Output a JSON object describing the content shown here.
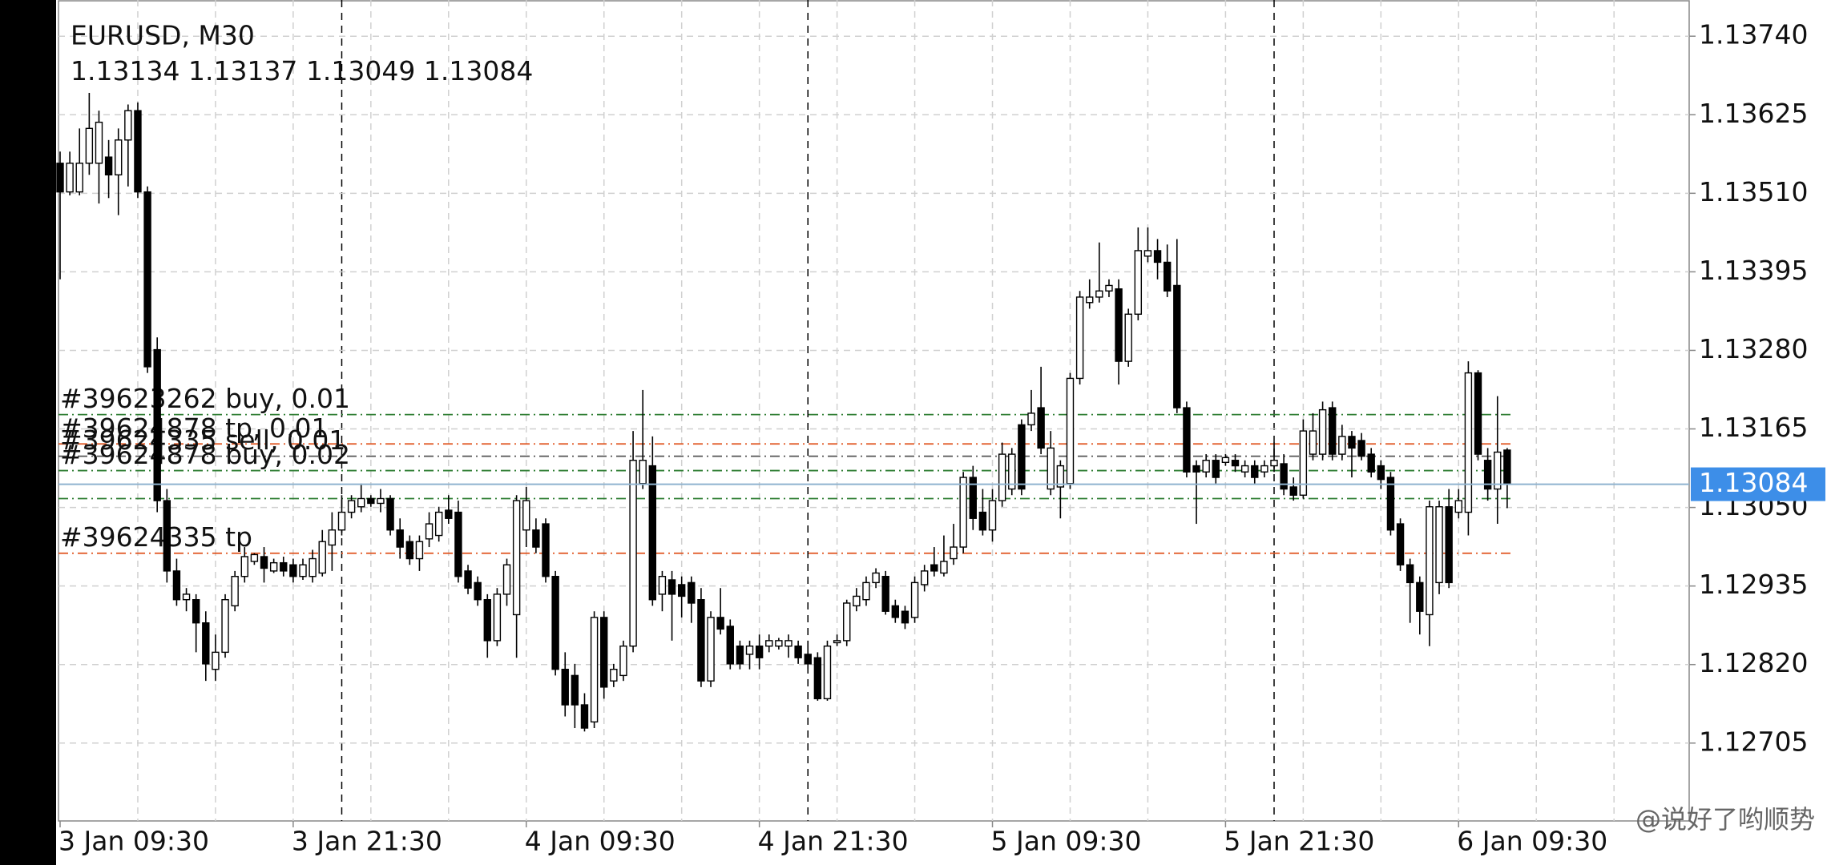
{
  "chart_data": {
    "type": "candlestick",
    "title": "EURUSD, M30",
    "categories": [
      "3 Jan 09:30",
      null,
      null,
      null,
      null,
      null,
      null,
      null,
      null,
      null,
      null,
      null,
      null,
      null,
      null,
      null,
      null,
      null,
      null,
      null,
      null,
      null,
      null,
      null,
      "3 Jan 21:30",
      null,
      null,
      null,
      null,
      null,
      null,
      null,
      null,
      null,
      null,
      null,
      null,
      null,
      null,
      null,
      null,
      null,
      null,
      null,
      null,
      null,
      null,
      null,
      "4 Jan 09:30",
      null,
      null,
      null,
      null,
      null,
      null,
      null,
      null,
      null,
      null,
      null,
      null,
      null,
      null,
      null,
      null,
      null,
      null,
      null,
      null,
      null,
      null,
      null,
      "4 Jan 21:30",
      null,
      null,
      null,
      null,
      null,
      null,
      null,
      null,
      null,
      null,
      null,
      null,
      null,
      null,
      null,
      null,
      null,
      null,
      null,
      null,
      null,
      null,
      null,
      "5 Jan 09:30",
      null,
      null,
      null,
      null,
      null,
      null,
      null,
      null,
      null,
      null,
      null,
      null,
      null,
      null,
      null,
      null,
      null,
      null,
      null,
      null,
      null,
      null,
      null,
      "5 Jan 21:30",
      null,
      null,
      null,
      null,
      null,
      null,
      null,
      null,
      null,
      null,
      null,
      null,
      null,
      null,
      null,
      null,
      null,
      null,
      null,
      null,
      null,
      null,
      null,
      "6 Jan 09:30",
      null,
      null,
      null,
      null,
      null
    ],
    "open": [
      1.13554,
      1.13512,
      1.13512,
      1.13554,
      1.13554,
      1.13563,
      1.13537,
      1.13588,
      1.13631,
      1.13512,
      1.13281,
      1.1306,
      1.12957,
      1.12915,
      1.12915,
      1.12881,
      1.12813,
      1.12838,
      1.12906,
      1.12949,
      1.12971,
      1.12978,
      1.12957,
      1.12969,
      1.12966,
      1.12949,
      1.12949,
      1.12954,
      1.12995,
      1.13017,
      1.13043,
      1.13051,
      1.13063,
      1.13056,
      1.13063,
      1.13017,
      1.13,
      1.12975,
      1.13004,
      1.13009,
      1.13046,
      1.13043,
      1.12957,
      1.1294,
      1.12915,
      1.12855,
      1.12923,
      1.12893,
      1.13017,
      1.13017,
      1.13026,
      1.12949,
      1.12813,
      1.12804,
      1.12761,
      1.12736,
      1.12889,
      1.12796,
      1.12804,
      1.12847,
      1.13085,
      1.13111,
      1.12923,
      1.12944,
      1.12937,
      1.1294,
      1.12915,
      1.12796,
      1.12889,
      1.12876,
      1.12847,
      1.12835,
      1.12847,
      1.12847,
      1.12847,
      1.12847,
      1.12847,
      1.12835,
      1.1283,
      1.1277,
      1.12852,
      1.12855,
      1.12906,
      1.12915,
      1.1294,
      1.12949,
      1.12906,
      1.12898,
      1.12889,
      1.12937,
      1.12966,
      1.12954,
      1.12975,
      1.12992,
      1.13094,
      1.13043,
      1.13017,
      1.1306,
      1.13077,
      1.13171,
      1.13171,
      1.13196,
      1.13077,
      1.1308,
      1.13085,
      1.13239,
      1.1335,
      1.13358,
      1.13367,
      1.1337,
      1.13264,
      1.13333,
      1.13418,
      1.13426,
      1.13409,
      1.13375,
      1.13196,
      1.13111,
      1.13102,
      1.13119,
      1.13116,
      1.13119,
      1.13102,
      1.13111,
      1.13102,
      1.13111,
      1.13114,
      1.1308,
      1.13068,
      1.13128,
      1.13128,
      1.13196,
      1.13128,
      1.13154,
      1.13148,
      1.13128,
      1.13111,
      1.13094,
      1.13026,
      1.12966,
      1.1294,
      1.12893,
      1.1294,
      1.13051,
      1.13043,
      1.13043,
      1.13247,
      1.13119,
      1.13077,
      1.13134
    ],
    "high": [
      1.13571,
      1.13571,
      1.13605,
      1.13657,
      1.13631,
      1.13588,
      1.13605,
      1.1364,
      1.13643,
      1.1352,
      1.13299,
      1.13077,
      1.12975,
      1.12932,
      1.12923,
      1.12898,
      1.12864,
      1.12923,
      1.12957,
      1.12992,
      1.12983,
      1.12992,
      1.12975,
      1.12978,
      1.12975,
      1.12975,
      1.12988,
      1.13017,
      1.13043,
      1.13068,
      1.13068,
      1.13085,
      1.13068,
      1.13077,
      1.13068,
      1.13034,
      1.13009,
      1.13009,
      1.13043,
      1.13051,
      1.13068,
      1.1306,
      1.12966,
      1.12949,
      1.12923,
      1.12932,
      1.12975,
      1.13068,
      1.1308,
      1.13034,
      1.13034,
      1.12957,
      1.12838,
      1.12821,
      1.12778,
      1.12898,
      1.12898,
      1.12821,
      1.12855,
      1.13162,
      1.13222,
      1.13154,
      1.12957,
      1.12957,
      1.12949,
      1.12949,
      1.12932,
      1.12898,
      1.12932,
      1.12886,
      1.12855,
      1.12855,
      1.12864,
      1.12864,
      1.12859,
      1.12864,
      1.12855,
      1.12855,
      1.12838,
      1.12855,
      1.12864,
      1.12915,
      1.12932,
      1.12949,
      1.12961,
      1.12957,
      1.12915,
      1.12906,
      1.12949,
      1.12966,
      1.12992,
      1.13009,
      1.13026,
      1.13102,
      1.13111,
      1.13077,
      1.13077,
      1.13145,
      1.13137,
      1.13179,
      1.13222,
      1.13256,
      1.13162,
      1.13119,
      1.13247,
      1.13367,
      1.13384,
      1.13438,
      1.13384,
      1.13384,
      1.13341,
      1.1346,
      1.1346,
      1.13443,
      1.13435,
      1.13443,
      1.13205,
      1.13119,
      1.13128,
      1.13128,
      1.13128,
      1.13128,
      1.13119,
      1.13119,
      1.13119,
      1.13145,
      1.13128,
      1.13094,
      1.13179,
      1.13188,
      1.13205,
      1.13205,
      1.13171,
      1.13162,
      1.13159,
      1.13137,
      1.13119,
      1.13102,
      1.13034,
      1.12975,
      1.12949,
      1.1306,
      1.1306,
      1.13077,
      1.13077,
      1.13264,
      1.13251,
      1.13137,
      1.13213,
      1.13137
    ],
    "low": [
      1.13384,
      1.13507,
      1.13507,
      1.13537,
      1.13495,
      1.13503,
      1.13478,
      1.1352,
      1.13503,
      1.13247,
      1.13043,
      1.1294,
      1.12906,
      1.12898,
      1.12838,
      1.12796,
      1.12796,
      1.1283,
      1.12898,
      1.1294,
      1.12966,
      1.1294,
      1.12954,
      1.12949,
      1.1294,
      1.12944,
      1.1294,
      1.12949,
      1.12957,
      1.13009,
      1.13034,
      1.13043,
      1.13051,
      1.13043,
      1.13009,
      1.12975,
      1.12966,
      1.12957,
      1.12992,
      1.13,
      1.13026,
      1.1294,
      1.12923,
      1.12906,
      1.1283,
      1.12847,
      1.12906,
      1.1283,
      1.12992,
      1.12983,
      1.1294,
      1.12804,
      1.12744,
      1.12727,
      1.12722,
      1.12727,
      1.1277,
      1.12787,
      1.12796,
      1.12838,
      1.13077,
      1.12906,
      1.12898,
      1.12855,
      1.12889,
      1.12881,
      1.12787,
      1.12787,
      1.12864,
      1.12813,
      1.12813,
      1.12813,
      1.12813,
      1.12838,
      1.12842,
      1.1283,
      1.12821,
      1.12813,
      1.12767,
      1.12767,
      1.12847,
      1.12847,
      1.12898,
      1.12906,
      1.12932,
      1.12893,
      1.12881,
      1.12872,
      1.12881,
      1.12927,
      1.12949,
      1.12949,
      1.12966,
      1.12983,
      1.13017,
      1.13009,
      1.13,
      1.13051,
      1.13068,
      1.13068,
      1.13162,
      1.13128,
      1.13068,
      1.13034,
      1.13077,
      1.1323,
      1.13341,
      1.1335,
      1.13358,
      1.1323,
      1.13256,
      1.13324,
      1.13409,
      1.13384,
      1.13358,
      1.13188,
      1.13094,
      1.13026,
      1.13094,
      1.13085,
      1.13111,
      1.13102,
      1.13094,
      1.13085,
      1.13094,
      1.13102,
      1.13068,
      1.1306,
      1.13063,
      1.13119,
      1.13119,
      1.13119,
      1.13119,
      1.13094,
      1.13119,
      1.13094,
      1.13077,
      1.13009,
      1.12957,
      1.12881,
      1.12864,
      1.12847,
      1.12923,
      1.12932,
      1.13034,
      1.13009,
      1.13119,
      1.1306,
      1.13026,
      1.13049
    ],
    "close": [
      1.13512,
      1.13554,
      1.13554,
      1.13605,
      1.13614,
      1.13537,
      1.13588,
      1.13631,
      1.13512,
      1.13256,
      1.1306,
      1.12957,
      1.12915,
      1.12923,
      1.12881,
      1.12821,
      1.12838,
      1.12915,
      1.12949,
      1.12978,
      1.12981,
      1.12961,
      1.12969,
      1.12957,
      1.12949,
      1.12966,
      1.12975,
      1.13,
      1.13017,
      1.13043,
      1.1306,
      1.13063,
      1.13056,
      1.13063,
      1.13017,
      1.12992,
      1.12975,
      1.13,
      1.13026,
      1.13043,
      1.13034,
      1.12949,
      1.12932,
      1.12915,
      1.12855,
      1.12923,
      1.12966,
      1.1306,
      1.1306,
      1.12992,
      1.12949,
      1.12813,
      1.12761,
      1.12761,
      1.12727,
      1.12889,
      1.12787,
      1.12813,
      1.12847,
      1.13119,
      1.13119,
      1.12915,
      1.12949,
      1.12923,
      1.1292,
      1.1291,
      1.12796,
      1.12889,
      1.12872,
      1.12821,
      1.12821,
      1.12847,
      1.1283,
      1.12855,
      1.12855,
      1.12855,
      1.1283,
      1.12821,
      1.1277,
      1.12847,
      1.12855,
      1.1291,
      1.1292,
      1.1294,
      1.12954,
      1.12898,
      1.12889,
      1.12881,
      1.1294,
      1.12957,
      1.12957,
      1.12971,
      1.12992,
      1.13094,
      1.13034,
      1.13017,
      1.1306,
      1.13128,
      1.13128,
      1.13077,
      1.13188,
      1.13137,
      1.13137,
      1.13111,
      1.13239,
      1.13358,
      1.13358,
      1.13367,
      1.13375,
      1.13264,
      1.13333,
      1.13426,
      1.13426,
      1.13409,
      1.13367,
      1.13196,
      1.13102,
      1.13102,
      1.13119,
      1.13094,
      1.13123,
      1.13111,
      1.13111,
      1.13094,
      1.13111,
      1.13119,
      1.13077,
      1.13068,
      1.13162,
      1.13162,
      1.13193,
      1.13128,
      1.13154,
      1.13137,
      1.13125,
      1.13102,
      1.13091,
      1.13017,
      1.12966,
      1.1294,
      1.12898,
      1.13051,
      1.13051,
      1.1294,
      1.1306,
      1.13247,
      1.13128,
      1.13077,
      1.13131,
      1.13084
    ],
    "up_color": "#ffffff",
    "down_color": "#000000",
    "current_price_color": "#3d8ee8",
    "ylim": [
      1.12591,
      1.13793
    ],
    "yticks": [
      {
        "value": 1.1374,
        "label": "1.13740"
      },
      1.13625,
      {
        "value": 1.1351,
        "label": "1.13510"
      },
      1.13395,
      {
        "value": 1.1328,
        "label": "1.13280"
      },
      1.13165,
      {
        "value": 1.1305,
        "label": "1.13050"
      },
      1.12935,
      {
        "value": 1.1282,
        "label": "1.12820"
      },
      1.12705
    ],
    "grid": true,
    "orders": [
      {
        "label": "#39623262 buy, 0.01",
        "price": 1.13186,
        "color": "#2e7d32"
      },
      {
        "label": "#39624878 tp, 0.01",
        "price": 1.13143,
        "color": "#e0531f"
      },
      {
        "label": "#39624335 sell, 0.01",
        "price": 1.13125,
        "color": "#555555"
      },
      {
        "label": "#39624878 buy, 0.02",
        "price": 1.13104,
        "color": "#2e7d32"
      },
      {
        "label": null,
        "price": 1.13063,
        "color": "#2e7d32"
      },
      {
        "label": "#39624335 tp",
        "price": 1.12983,
        "color": "#e0531f"
      }
    ],
    "watermark": "@说好了哟顺势"
  }
}
